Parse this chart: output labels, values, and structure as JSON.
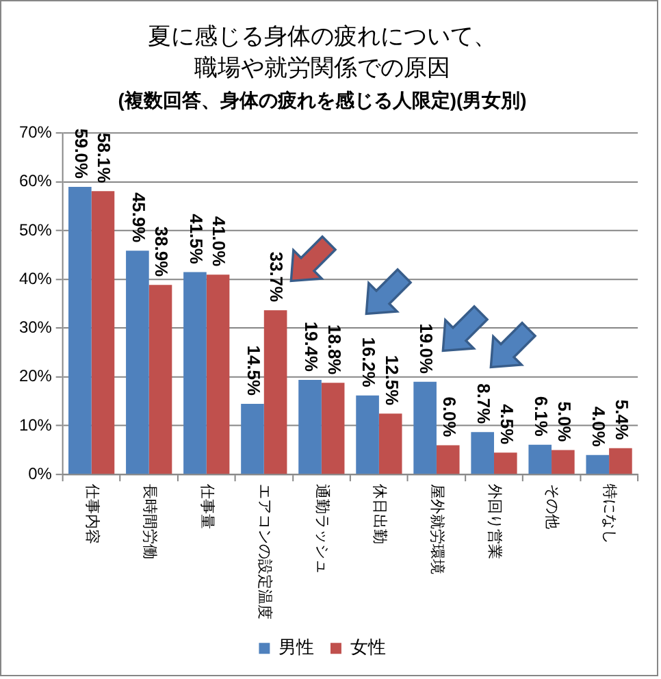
{
  "chart_data": {
    "type": "bar",
    "title": "夏に感じる身体の疲れについて、職場や就労関係での原因",
    "subtitle": "(複数回答、身体の疲れを感じる人限定)(男女別)",
    "categories": [
      "仕事内容",
      "長時間労働",
      "仕事量",
      "エアコンの設定温度",
      "通勤ラッシュ",
      "休日出勤",
      "屋外就労環境",
      "外回り営業",
      "その他",
      "特になし"
    ],
    "series": [
      {
        "name": "男性",
        "color": "#4f81bd",
        "values": [
          59.0,
          45.9,
          41.5,
          14.5,
          19.4,
          16.2,
          19.0,
          8.7,
          6.1,
          4.0
        ],
        "value_labels": [
          "59.0%",
          "45.9%",
          "41.5%",
          "14.5%",
          "19.4%",
          "16.2%",
          "19.0%",
          "8.7%",
          "6.1%",
          "4.0%"
        ]
      },
      {
        "name": "女性",
        "color": "#c0504d",
        "values": [
          58.1,
          38.9,
          41.0,
          33.7,
          18.8,
          12.5,
          6.0,
          4.5,
          5.0,
          5.4
        ],
        "value_labels": [
          "58.1%",
          "38.9%",
          "41.0%",
          "33.7%",
          "18.8%",
          "12.5%",
          "6.0%",
          "4.5%",
          "5.0%",
          "5.4%"
        ]
      }
    ],
    "ylim": [
      0,
      70
    ],
    "yticks": [
      {
        "value": 0,
        "label": "0%"
      },
      {
        "value": 10,
        "label": "10%"
      },
      {
        "value": 20,
        "label": "20%"
      },
      {
        "value": 30,
        "label": "30%"
      },
      {
        "value": 40,
        "label": "40%"
      },
      {
        "value": 50,
        "label": "50%"
      },
      {
        "value": 60,
        "label": "60%"
      },
      {
        "value": 70,
        "label": "70%"
      }
    ],
    "grid": "y",
    "legend": "bottom"
  }
}
